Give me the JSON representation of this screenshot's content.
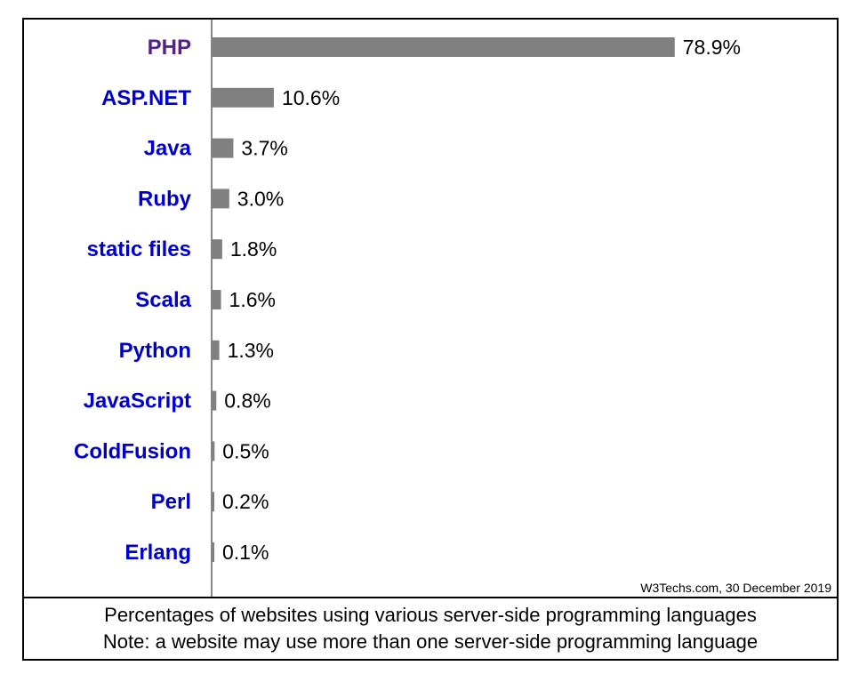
{
  "chart_data": {
    "type": "bar",
    "orientation": "horizontal",
    "categories": [
      "PHP",
      "ASP.NET",
      "Java",
      "Ruby",
      "static files",
      "Scala",
      "Python",
      "JavaScript",
      "ColdFusion",
      "Perl",
      "Erlang"
    ],
    "values": [
      78.9,
      10.6,
      3.7,
      3.0,
      1.8,
      1.6,
      1.3,
      0.8,
      0.5,
      0.2,
      0.1
    ],
    "value_labels": [
      "78.9%",
      "10.6%",
      "3.7%",
      "3.0%",
      "1.8%",
      "1.6%",
      "1.3%",
      "0.8%",
      "0.5%",
      "0.2%",
      "0.1%"
    ],
    "xlim": [
      0,
      100
    ],
    "source": "W3Techs.com, 30 December 2019",
    "caption": [
      "Percentages of websites using various server-side programming languages",
      "Note: a website may use more than one server-side programming language"
    ]
  },
  "colors": {
    "bar": "#808080",
    "category_label": "#0000cc",
    "category_label_first": "#552288",
    "axis": "#888888"
  }
}
